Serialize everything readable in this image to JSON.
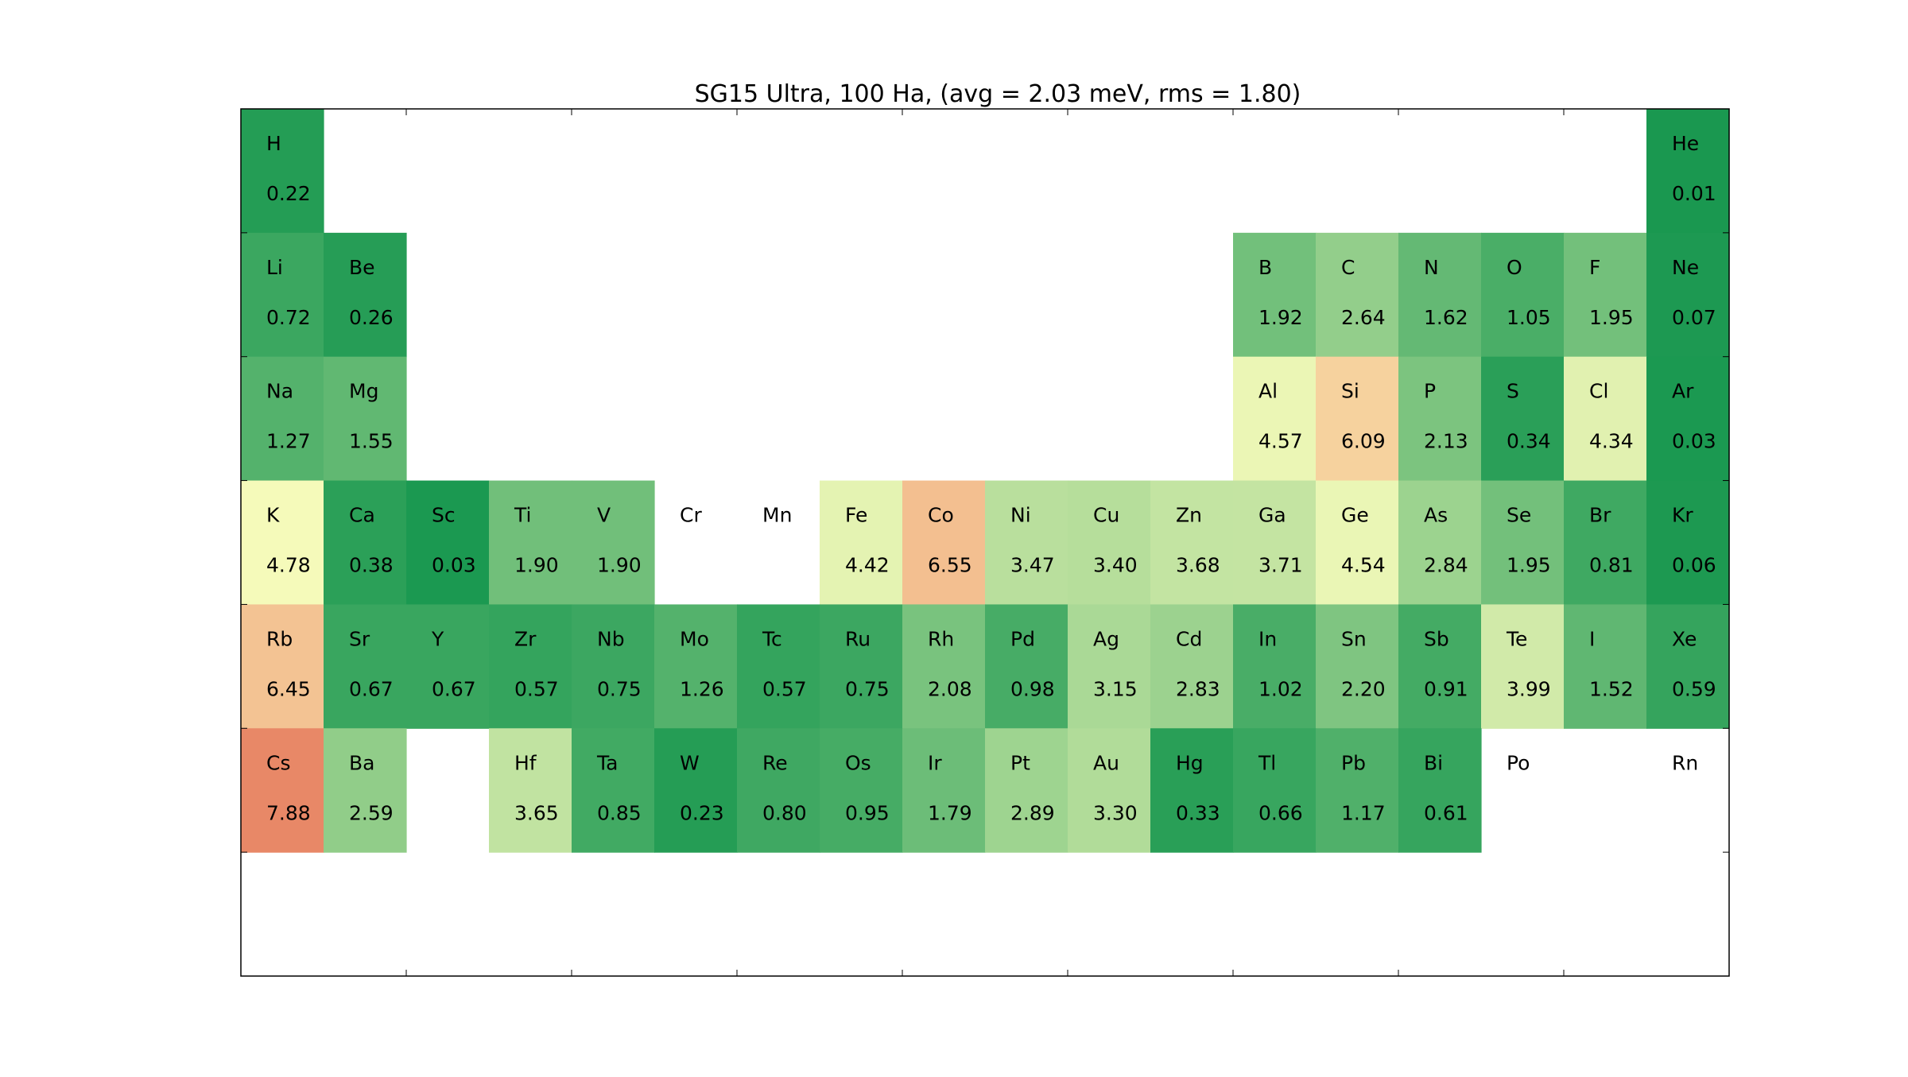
{
  "chart_data": {
    "type": "heatmap",
    "title": "SG15 Ultra, 100 Ha, (avg = 2.03 meV, rms = 1.80)",
    "xlabel": "",
    "ylabel": "",
    "grid": false,
    "columns": 18,
    "rows": 7,
    "colors": {
      "good": "#1a9850",
      "mid": "#ffffbf",
      "bad": "#d73027"
    },
    "color_range": [
      0,
      10
    ],
    "elements": [
      {
        "symbol": "H",
        "value": 0.22,
        "value_text": "0.22",
        "row": 1,
        "col": 1
      },
      {
        "symbol": "He",
        "value": 0.01,
        "value_text": "0.01",
        "row": 1,
        "col": 18
      },
      {
        "symbol": "Li",
        "value": 0.72,
        "value_text": "0.72",
        "row": 2,
        "col": 1
      },
      {
        "symbol": "Be",
        "value": 0.26,
        "value_text": "0.26",
        "row": 2,
        "col": 2
      },
      {
        "symbol": "B",
        "value": 1.92,
        "value_text": "1.92",
        "row": 2,
        "col": 13
      },
      {
        "symbol": "C",
        "value": 2.64,
        "value_text": "2.64",
        "row": 2,
        "col": 14
      },
      {
        "symbol": "N",
        "value": 1.62,
        "value_text": "1.62",
        "row": 2,
        "col": 15
      },
      {
        "symbol": "O",
        "value": 1.05,
        "value_text": "1.05",
        "row": 2,
        "col": 16
      },
      {
        "symbol": "F",
        "value": 1.95,
        "value_text": "1.95",
        "row": 2,
        "col": 17
      },
      {
        "symbol": "Ne",
        "value": 0.07,
        "value_text": "0.07",
        "row": 2,
        "col": 18
      },
      {
        "symbol": "Na",
        "value": 1.27,
        "value_text": "1.27",
        "row": 3,
        "col": 1
      },
      {
        "symbol": "Mg",
        "value": 1.55,
        "value_text": "1.55",
        "row": 3,
        "col": 2
      },
      {
        "symbol": "Al",
        "value": 4.57,
        "value_text": "4.57",
        "row": 3,
        "col": 13
      },
      {
        "symbol": "Si",
        "value": 6.09,
        "value_text": "6.09",
        "row": 3,
        "col": 14
      },
      {
        "symbol": "P",
        "value": 2.13,
        "value_text": "2.13",
        "row": 3,
        "col": 15
      },
      {
        "symbol": "S",
        "value": 0.34,
        "value_text": "0.34",
        "row": 3,
        "col": 16
      },
      {
        "symbol": "Cl",
        "value": 4.34,
        "value_text": "4.34",
        "row": 3,
        "col": 17
      },
      {
        "symbol": "Ar",
        "value": 0.03,
        "value_text": "0.03",
        "row": 3,
        "col": 18
      },
      {
        "symbol": "K",
        "value": 4.78,
        "value_text": "4.78",
        "row": 4,
        "col": 1
      },
      {
        "symbol": "Ca",
        "value": 0.38,
        "value_text": "0.38",
        "row": 4,
        "col": 2
      },
      {
        "symbol": "Sc",
        "value": 0.03,
        "value_text": "0.03",
        "row": 4,
        "col": 3
      },
      {
        "symbol": "Ti",
        "value": 1.9,
        "value_text": "1.90",
        "row": 4,
        "col": 4
      },
      {
        "symbol": "V",
        "value": 1.9,
        "value_text": "1.90",
        "row": 4,
        "col": 5
      },
      {
        "symbol": "Cr",
        "value": null,
        "value_text": "",
        "row": 4,
        "col": 6
      },
      {
        "symbol": "Mn",
        "value": null,
        "value_text": "",
        "row": 4,
        "col": 7
      },
      {
        "symbol": "Fe",
        "value": 4.42,
        "value_text": "4.42",
        "row": 4,
        "col": 8
      },
      {
        "symbol": "Co",
        "value": 6.55,
        "value_text": "6.55",
        "row": 4,
        "col": 9
      },
      {
        "symbol": "Ni",
        "value": 3.47,
        "value_text": "3.47",
        "row": 4,
        "col": 10
      },
      {
        "symbol": "Cu",
        "value": 3.4,
        "value_text": "3.40",
        "row": 4,
        "col": 11
      },
      {
        "symbol": "Zn",
        "value": 3.68,
        "value_text": "3.68",
        "row": 4,
        "col": 12
      },
      {
        "symbol": "Ga",
        "value": 3.71,
        "value_text": "3.71",
        "row": 4,
        "col": 13
      },
      {
        "symbol": "Ge",
        "value": 4.54,
        "value_text": "4.54",
        "row": 4,
        "col": 14
      },
      {
        "symbol": "As",
        "value": 2.84,
        "value_text": "2.84",
        "row": 4,
        "col": 15
      },
      {
        "symbol": "Se",
        "value": 1.95,
        "value_text": "1.95",
        "row": 4,
        "col": 16
      },
      {
        "symbol": "Br",
        "value": 0.81,
        "value_text": "0.81",
        "row": 4,
        "col": 17
      },
      {
        "symbol": "Kr",
        "value": 0.06,
        "value_text": "0.06",
        "row": 4,
        "col": 18
      },
      {
        "symbol": "Rb",
        "value": 6.45,
        "value_text": "6.45",
        "row": 5,
        "col": 1
      },
      {
        "symbol": "Sr",
        "value": 0.67,
        "value_text": "0.67",
        "row": 5,
        "col": 2
      },
      {
        "symbol": "Y",
        "value": 0.67,
        "value_text": "0.67",
        "row": 5,
        "col": 3
      },
      {
        "symbol": "Zr",
        "value": 0.57,
        "value_text": "0.57",
        "row": 5,
        "col": 4
      },
      {
        "symbol": "Nb",
        "value": 0.75,
        "value_text": "0.75",
        "row": 5,
        "col": 5
      },
      {
        "symbol": "Mo",
        "value": 1.26,
        "value_text": "1.26",
        "row": 5,
        "col": 6
      },
      {
        "symbol": "Tc",
        "value": 0.57,
        "value_text": "0.57",
        "row": 5,
        "col": 7
      },
      {
        "symbol": "Ru",
        "value": 0.75,
        "value_text": "0.75",
        "row": 5,
        "col": 8
      },
      {
        "symbol": "Rh",
        "value": 2.08,
        "value_text": "2.08",
        "row": 5,
        "col": 9
      },
      {
        "symbol": "Pd",
        "value": 0.98,
        "value_text": "0.98",
        "row": 5,
        "col": 10
      },
      {
        "symbol": "Ag",
        "value": 3.15,
        "value_text": "3.15",
        "row": 5,
        "col": 11
      },
      {
        "symbol": "Cd",
        "value": 2.83,
        "value_text": "2.83",
        "row": 5,
        "col": 12
      },
      {
        "symbol": "In",
        "value": 1.02,
        "value_text": "1.02",
        "row": 5,
        "col": 13
      },
      {
        "symbol": "Sn",
        "value": 2.2,
        "value_text": "2.20",
        "row": 5,
        "col": 14
      },
      {
        "symbol": "Sb",
        "value": 0.91,
        "value_text": "0.91",
        "row": 5,
        "col": 15
      },
      {
        "symbol": "Te",
        "value": 3.99,
        "value_text": "3.99",
        "row": 5,
        "col": 16
      },
      {
        "symbol": "I",
        "value": 1.52,
        "value_text": "1.52",
        "row": 5,
        "col": 17
      },
      {
        "symbol": "Xe",
        "value": 0.59,
        "value_text": "0.59",
        "row": 5,
        "col": 18
      },
      {
        "symbol": "Cs",
        "value": 7.88,
        "value_text": "7.88",
        "row": 6,
        "col": 1
      },
      {
        "symbol": "Ba",
        "value": 2.59,
        "value_text": "2.59",
        "row": 6,
        "col": 2
      },
      {
        "symbol": "Hf",
        "value": 3.65,
        "value_text": "3.65",
        "row": 6,
        "col": 4
      },
      {
        "symbol": "Ta",
        "value": 0.85,
        "value_text": "0.85",
        "row": 6,
        "col": 5
      },
      {
        "symbol": "W",
        "value": 0.23,
        "value_text": "0.23",
        "row": 6,
        "col": 6
      },
      {
        "symbol": "Re",
        "value": 0.8,
        "value_text": "0.80",
        "row": 6,
        "col": 7
      },
      {
        "symbol": "Os",
        "value": 0.95,
        "value_text": "0.95",
        "row": 6,
        "col": 8
      },
      {
        "symbol": "Ir",
        "value": 1.79,
        "value_text": "1.79",
        "row": 6,
        "col": 9
      },
      {
        "symbol": "Pt",
        "value": 2.89,
        "value_text": "2.89",
        "row": 6,
        "col": 10
      },
      {
        "symbol": "Au",
        "value": 3.3,
        "value_text": "3.30",
        "row": 6,
        "col": 11
      },
      {
        "symbol": "Hg",
        "value": 0.33,
        "value_text": "0.33",
        "row": 6,
        "col": 12
      },
      {
        "symbol": "Tl",
        "value": 0.66,
        "value_text": "0.66",
        "row": 6,
        "col": 13
      },
      {
        "symbol": "Pb",
        "value": 1.17,
        "value_text": "1.17",
        "row": 6,
        "col": 14
      },
      {
        "symbol": "Bi",
        "value": 0.61,
        "value_text": "0.61",
        "row": 6,
        "col": 15
      },
      {
        "symbol": "Po",
        "value": null,
        "value_text": "",
        "row": 6,
        "col": 16
      },
      {
        "symbol": "Rn",
        "value": null,
        "value_text": "",
        "row": 6,
        "col": 18
      }
    ]
  }
}
